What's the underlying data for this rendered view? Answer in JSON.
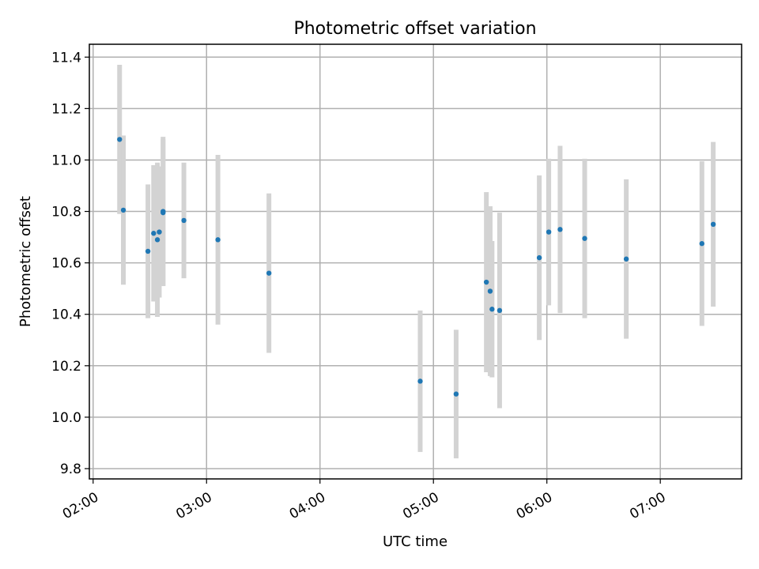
{
  "chart_data": {
    "type": "scatter",
    "title": "Photometric offset variation",
    "xlabel": "UTC time",
    "ylabel": "Photometric offset",
    "xlim": [
      "01:58",
      "07:43"
    ],
    "ylim": [
      9.76,
      11.45
    ],
    "grid": true,
    "x_ticks": [
      "02:00",
      "03:00",
      "04:00",
      "05:00",
      "06:00",
      "07:00"
    ],
    "y_ticks": [
      9.8,
      10.0,
      10.2,
      10.4,
      10.6,
      10.8,
      11.0,
      11.2,
      11.4
    ],
    "y_tick_labels": [
      "9.8",
      "10.0",
      "10.2",
      "10.4",
      "10.6",
      "10.8",
      "11.0",
      "11.2",
      "11.4"
    ],
    "series": [
      {
        "color": "#1f77b4",
        "errorbar_color": "#d3d3d3",
        "points": [
          {
            "x": "02:14",
            "y": 11.08,
            "err": 0.29
          },
          {
            "x": "02:16",
            "y": 10.805,
            "err": 0.29
          },
          {
            "x": "02:29",
            "y": 10.645,
            "err": 0.26
          },
          {
            "x": "02:32",
            "y": 10.715,
            "err": 0.265
          },
          {
            "x": "02:34",
            "y": 10.69,
            "err": 0.3
          },
          {
            "x": "02:35",
            "y": 10.72,
            "err": 0.255
          },
          {
            "x": "02:37",
            "y": 10.8,
            "err": 0.29
          },
          {
            "x": "02:37",
            "y": 10.795,
            "err": 0.285
          },
          {
            "x": "02:48",
            "y": 10.765,
            "err": 0.225
          },
          {
            "x": "03:06",
            "y": 10.69,
            "err": 0.33
          },
          {
            "x": "03:33",
            "y": 10.56,
            "err": 0.31
          },
          {
            "x": "04:53",
            "y": 10.14,
            "err": 0.275
          },
          {
            "x": "05:12",
            "y": 10.09,
            "err": 0.25
          },
          {
            "x": "05:28",
            "y": 10.525,
            "err": 0.35
          },
          {
            "x": "05:30",
            "y": 10.49,
            "err": 0.33
          },
          {
            "x": "05:31",
            "y": 10.42,
            "err": 0.265
          },
          {
            "x": "05:35",
            "y": 10.415,
            "err": 0.38
          },
          {
            "x": "05:56",
            "y": 10.62,
            "err": 0.32
          },
          {
            "x": "06:01",
            "y": 10.72,
            "err": 0.285
          },
          {
            "x": "06:07",
            "y": 10.73,
            "err": 0.325
          },
          {
            "x": "06:20",
            "y": 10.695,
            "err": 0.31
          },
          {
            "x": "06:42",
            "y": 10.615,
            "err": 0.31
          },
          {
            "x": "07:22",
            "y": 10.675,
            "err": 0.32
          },
          {
            "x": "07:28",
            "y": 10.75,
            "err": 0.32
          }
        ]
      }
    ]
  }
}
